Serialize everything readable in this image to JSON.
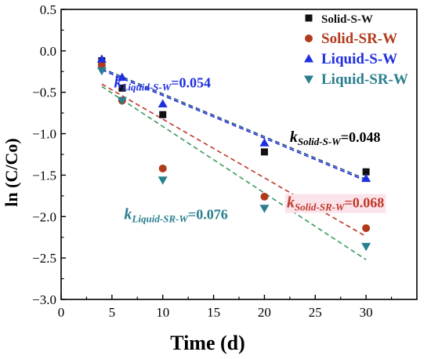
{
  "chart_data": {
    "type": "scatter",
    "title": "",
    "xlabel": "Time (d)",
    "ylabel": "ln (C/Co)",
    "xlim": [
      0,
      35
    ],
    "ylim": [
      -3.0,
      0.5
    ],
    "x_ticks": [
      "0",
      "5",
      "10",
      "15",
      "20",
      "25",
      "30"
    ],
    "y_ticks": [
      "0.5",
      "0.0",
      "−0.5",
      "−1.0",
      "−1.5",
      "−2.0",
      "−2.5",
      "−3.0"
    ],
    "grid": false,
    "legend_position": "top-right",
    "x": [
      4,
      6,
      10,
      20,
      30
    ],
    "series": [
      {
        "name": "Solid-S-W",
        "marker": "square",
        "color": "#111111",
        "fit_color": "#2a4f8c",
        "values": [
          -0.12,
          -0.45,
          -0.77,
          -1.22,
          -1.46
        ],
        "fit": [
          4,
          30,
          -0.21,
          -1.55
        ]
      },
      {
        "name": "Solid-SR-W",
        "marker": "circle",
        "color": "#b23a1c",
        "fit_color": "#c0392b",
        "values": [
          -0.17,
          -0.6,
          -1.42,
          -1.76,
          -2.14
        ],
        "fit": [
          4,
          30,
          -0.4,
          -2.24
        ]
      },
      {
        "name": "Liquid-S-W",
        "marker": "triangle-up",
        "color": "#1f2fe0",
        "fit_color": "#1f2fe0",
        "values": [
          -0.1,
          -0.32,
          -0.64,
          -1.11,
          -1.54
        ],
        "fit": [
          4,
          30,
          -0.23,
          -1.57
        ]
      },
      {
        "name": "Liquid-SR-W",
        "marker": "triangle-down",
        "color": "#2a7f8f",
        "fit_color": "#3a9a5a",
        "values": [
          -0.24,
          -0.6,
          -1.56,
          -1.9,
          -2.36
        ],
        "fit": [
          4,
          30,
          -0.43,
          -2.52
        ]
      }
    ],
    "annotations": [
      {
        "k": "k",
        "sub": "Liquid-S-W",
        "value": "=0.054",
        "color": "#1f2fe0",
        "x": 5.2,
        "y": -0.44,
        "highlight": false
      },
      {
        "k": "k",
        "sub": "Solid-S-W",
        "value": "=0.048",
        "color": "#000000",
        "x": 22.5,
        "y": -1.1,
        "highlight": false
      },
      {
        "k": "k",
        "sub": "Solid-SR-W",
        "value": "=0.068",
        "color": "#c0392b",
        "x": 22.2,
        "y": -1.89,
        "highlight": true
      },
      {
        "k": "k",
        "sub": "Liquid-SR-W",
        "value": "=0.076",
        "color": "#2a7f8f",
        "x": 6.2,
        "y": -2.03,
        "highlight": false
      }
    ]
  }
}
